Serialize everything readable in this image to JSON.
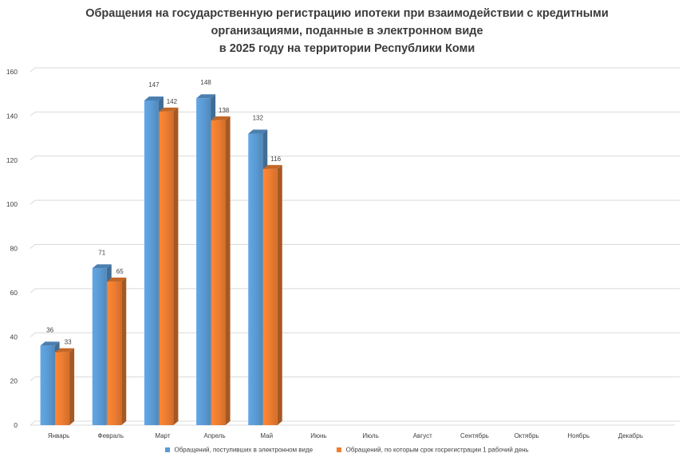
{
  "chart_data": {
    "type": "bar",
    "title_lines": [
      "Обращения на государственную регистрацию ипотеки при взаимодействии с кредитными",
      "организациями, поданные в электронном виде",
      "в 2025 году на территории Республики Коми"
    ],
    "categories": [
      "Январь",
      "Февраль",
      "Март",
      "Апрель",
      "Май",
      "Июнь",
      "Июль",
      "Август",
      "Сентябрь",
      "Октябрь",
      "Ноябрь",
      "Декабрь"
    ],
    "series": [
      {
        "name": "Обращений, поступивших в электронном виде",
        "color": "#5b9bd5",
        "values": [
          36,
          71,
          147,
          148,
          132,
          null,
          null,
          null,
          null,
          null,
          null,
          null
        ]
      },
      {
        "name": "Обращений, по которым срок госрегистрации 1 рабочий день",
        "color": "#ed7d31",
        "values": [
          33,
          65,
          142,
          138,
          116,
          null,
          null,
          null,
          null,
          null,
          null,
          null
        ]
      }
    ],
    "ylim": [
      0,
      160
    ],
    "yticks": [
      0,
      20,
      40,
      60,
      80,
      100,
      120,
      140,
      160
    ],
    "grid": true,
    "legend_position": "bottom",
    "style": "3d-clustered-column"
  }
}
